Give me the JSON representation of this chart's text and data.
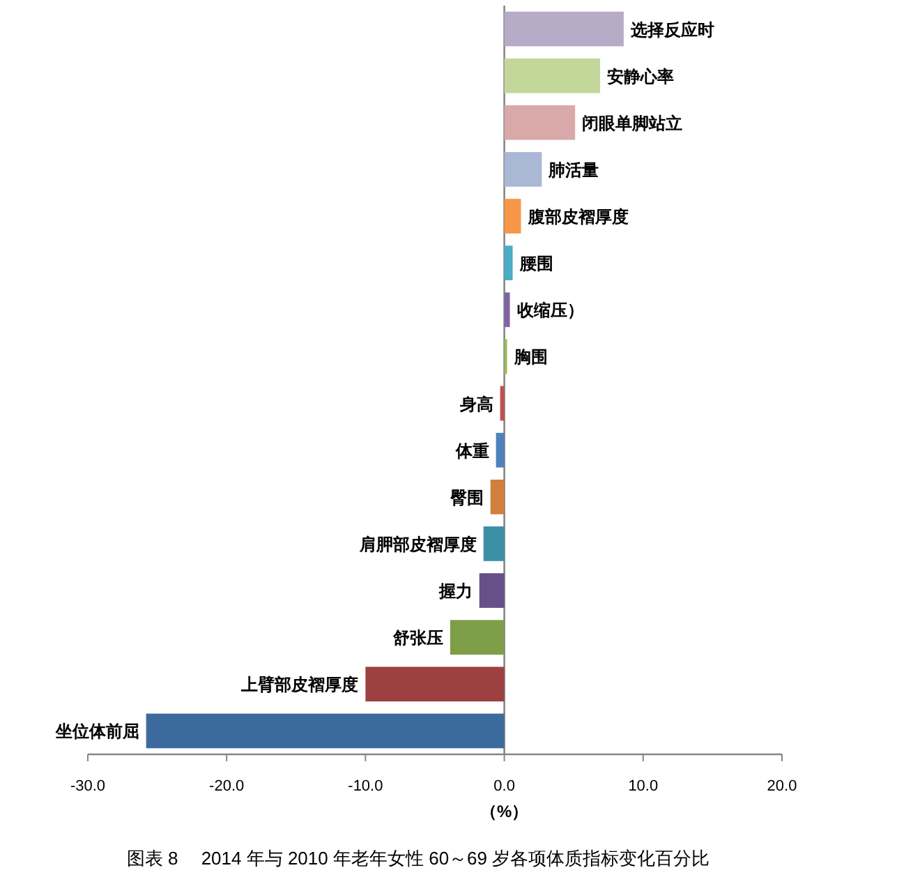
{
  "chart_data": {
    "type": "bar",
    "orientation": "horizontal",
    "categories": [
      "选择反应时",
      "安静心率",
      "闭眼单脚站立",
      "肺活量",
      "腹部皮褶厚度",
      "腰围",
      "收缩压）",
      "胸围",
      "身高",
      "体重",
      "臀围",
      "肩胛部皮褶厚度",
      "握力",
      "舒张压",
      "上臂部皮褶厚度",
      "坐位体前屈"
    ],
    "values": [
      8.6,
      6.9,
      5.1,
      2.7,
      1.2,
      0.6,
      0.4,
      0.2,
      -0.3,
      -0.6,
      -1.0,
      -1.5,
      -1.8,
      -3.9,
      -10.0,
      -25.8
    ],
    "colors": [
      "#b7abc8",
      "#c4d79b",
      "#d9a9a9",
      "#aab8d6",
      "#f79646",
      "#4bacc6",
      "#8064a2",
      "#9bbb59",
      "#c0504d",
      "#4f81bd",
      "#d07f3c",
      "#3c8fa5",
      "#674f8a",
      "#7f9e48",
      "#9c4140",
      "#3d6a9c"
    ],
    "xlim": [
      -30,
      20
    ],
    "xticks": [
      {
        "value": -30,
        "label": "-30.0"
      },
      {
        "value": -20,
        "label": "-20.0"
      },
      {
        "value": -10,
        "label": "-10.0"
      },
      {
        "value": 0,
        "label": "0.0"
      },
      {
        "value": 10,
        "label": "10.0"
      },
      {
        "value": 20,
        "label": "20.0"
      }
    ],
    "xlabel": "（%）",
    "annotations": [
      "图表 8　 2014 年与 2010 年老年女性 60～69 岁各项体质指标变化百分比"
    ],
    "grid": false
  }
}
